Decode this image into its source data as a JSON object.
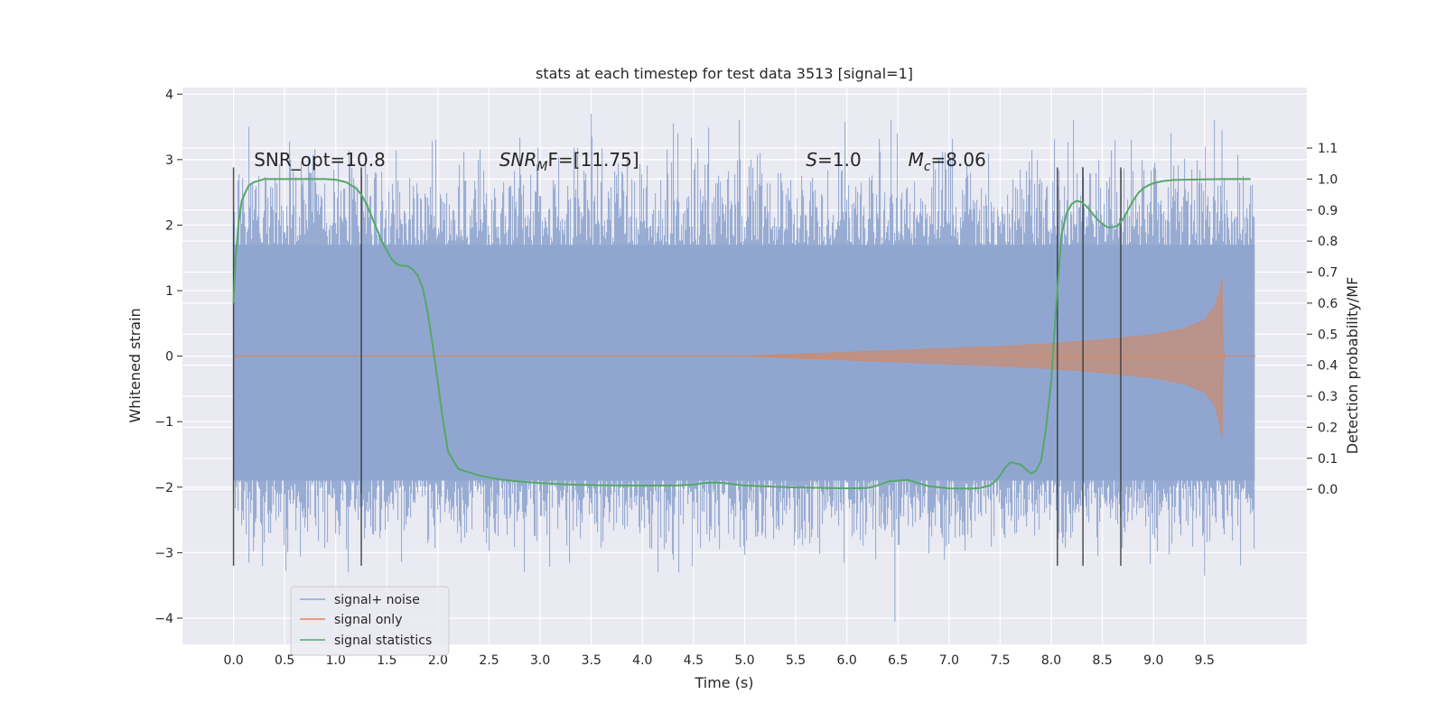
{
  "chart_data": {
    "type": "line",
    "title": "stats at each timestep for test data 3513 [signal=1]",
    "xlabel": "Time (s)",
    "ylabel": "Whitened strain",
    "y2label": "Detection probability/MF",
    "xlim": [
      -0.5,
      10.5
    ],
    "ylim": [
      -4.4,
      4.1
    ],
    "y2lim": [
      -0.5,
      1.295
    ],
    "xticks": [
      "0.0",
      "0.5",
      "1.0",
      "1.5",
      "2.0",
      "2.5",
      "3.0",
      "3.5",
      "4.0",
      "4.5",
      "5.0",
      "5.5",
      "6.0",
      "6.5",
      "7.0",
      "7.5",
      "8.0",
      "8.5",
      "9.0",
      "9.5"
    ],
    "yticks": [
      "4",
      "3",
      "2",
      "1",
      "0",
      "−1",
      "−2",
      "−3",
      "−4"
    ],
    "y2ticks": [
      "1.1",
      "1.0",
      "0.9",
      "0.8",
      "0.7",
      "0.6",
      "0.5",
      "0.4",
      "0.3",
      "0.2",
      "0.1",
      "0.0"
    ],
    "grid": true,
    "legend_position": "lower-left",
    "colors": {
      "background": "#eaeaf2",
      "grid": "#ffffff",
      "noise": "#8fa5cf",
      "signal": "#dd8452",
      "stat": "#55a868",
      "vline": "#333333"
    },
    "series": [
      {
        "name": "signal+ noise",
        "style": "filled noise envelope",
        "x_range": [
          0.0,
          9.99
        ],
        "envelope_core": [
          -1.9,
          1.7
        ],
        "envelope_spikes": [
          -3.3,
          3.6
        ],
        "extreme_points": [
          {
            "x": 3.5,
            "y": 3.7
          },
          {
            "x": 0.15,
            "y": 3.5
          },
          {
            "x": 9.67,
            "y": 3.45
          },
          {
            "x": 6.47,
            "y": -4.05
          },
          {
            "x": 9.5,
            "y": -3.35
          },
          {
            "x": 0.15,
            "y": -3.15
          }
        ]
      },
      {
        "name": "signal only",
        "style": "chirp",
        "amplitude_x": [
          0.0,
          5.0,
          5.5,
          6.0,
          6.5,
          7.0,
          7.5,
          8.0,
          8.5,
          9.0,
          9.3,
          9.5,
          9.6,
          9.65,
          9.67,
          9.68,
          9.7
        ],
        "amplitude_y": [
          0.0,
          0.0,
          0.03,
          0.06,
          0.09,
          0.12,
          0.15,
          0.19,
          0.25,
          0.33,
          0.42,
          0.55,
          0.75,
          1.0,
          1.2,
          0.1,
          0.0
        ],
        "amplitude_neg_y": [
          0.0,
          0.0,
          -0.03,
          -0.06,
          -0.09,
          -0.12,
          -0.15,
          -0.19,
          -0.25,
          -0.33,
          -0.42,
          -0.55,
          -0.75,
          -1.05,
          -1.25,
          -0.1,
          0.0
        ],
        "x_end": 10.0
      },
      {
        "name": "signal statistics",
        "axis": "right",
        "x": [
          0.0,
          0.02,
          0.05,
          0.08,
          0.12,
          0.15,
          0.2,
          0.3,
          0.5,
          0.7,
          0.9,
          1.0,
          1.1,
          1.2,
          1.25,
          1.3,
          1.35,
          1.4,
          1.45,
          1.5,
          1.55,
          1.6,
          1.65,
          1.7,
          1.75,
          1.8,
          1.85,
          1.9,
          1.95,
          2.0,
          2.05,
          2.1,
          2.2,
          2.4,
          2.6,
          2.8,
          3.0,
          3.3,
          3.6,
          4.0,
          4.3,
          4.5,
          4.6,
          4.7,
          4.8,
          5.0,
          5.5,
          6.0,
          6.2,
          6.3,
          6.4,
          6.6,
          6.8,
          7.0,
          7.2,
          7.3,
          7.4,
          7.45,
          7.5,
          7.55,
          7.6,
          7.7,
          7.8,
          7.85,
          7.9,
          7.95,
          8.0,
          8.05,
          8.1,
          8.15,
          8.2,
          8.25,
          8.3,
          8.35,
          8.4,
          8.45,
          8.5,
          8.55,
          8.6,
          8.65,
          8.7,
          8.75,
          8.8,
          8.85,
          8.9,
          8.95,
          9.0,
          9.1,
          9.2,
          9.3,
          9.5,
          9.7,
          9.95
        ],
        "y": [
          0.6,
          0.75,
          0.86,
          0.93,
          0.96,
          0.98,
          0.99,
          1.0,
          1.0,
          1.0,
          1.0,
          0.998,
          0.99,
          0.97,
          0.95,
          0.92,
          0.88,
          0.84,
          0.8,
          0.77,
          0.74,
          0.725,
          0.72,
          0.72,
          0.71,
          0.69,
          0.65,
          0.57,
          0.46,
          0.34,
          0.22,
          0.12,
          0.065,
          0.045,
          0.032,
          0.025,
          0.02,
          0.015,
          0.013,
          0.012,
          0.012,
          0.015,
          0.02,
          0.022,
          0.02,
          0.012,
          0.006,
          0.003,
          0.004,
          0.012,
          0.025,
          0.03,
          0.01,
          0.003,
          0.002,
          0.004,
          0.012,
          0.025,
          0.045,
          0.07,
          0.087,
          0.08,
          0.05,
          0.06,
          0.09,
          0.2,
          0.35,
          0.6,
          0.82,
          0.89,
          0.92,
          0.93,
          0.925,
          0.91,
          0.89,
          0.87,
          0.855,
          0.845,
          0.845,
          0.85,
          0.87,
          0.9,
          0.93,
          0.955,
          0.97,
          0.98,
          0.987,
          0.994,
          0.997,
          0.998,
          0.999,
          1.0,
          1.0
        ]
      }
    ],
    "vertical_lines_x": [
      0.0,
      1.25,
      8.06,
      8.31,
      8.68
    ],
    "vertical_lines_y": [
      -3.2,
      2.88
    ],
    "annotations": [
      {
        "text": "SNR_opt=10.8",
        "x": 0.2,
        "y": 3.0
      },
      {
        "text": "SNR",
        "sub": "M",
        "suffix": "F=[11.75]",
        "italic_prefix": true,
        "x": 2.6,
        "y": 3.0
      },
      {
        "text": "S",
        "suffix": "=1.0",
        "italic_prefix": true,
        "x": 5.6,
        "y": 3.0
      },
      {
        "text": "M",
        "sub": "c",
        "suffix": "=8.06",
        "italic_prefix": true,
        "x": 6.6,
        "y": 3.0
      }
    ]
  }
}
